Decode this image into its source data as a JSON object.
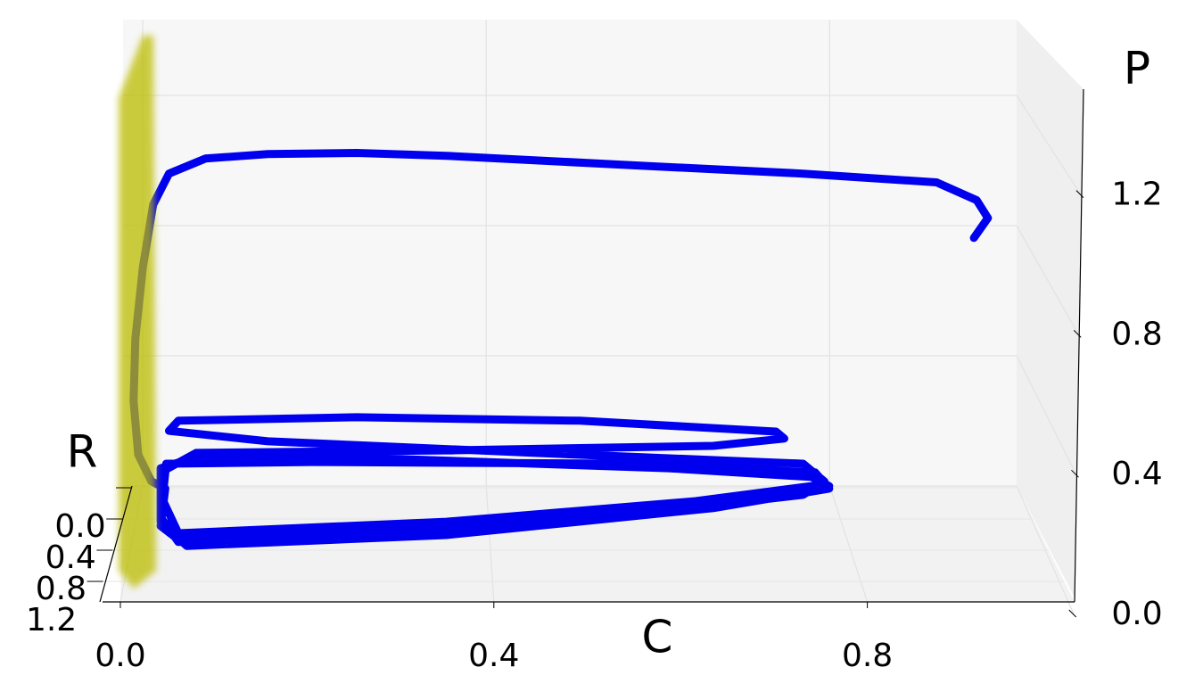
{
  "chart_data": {
    "type": "line3d",
    "color": "#0000ee",
    "plane_color": "#bcbc00",
    "xlabel": "C",
    "ylabel": "R",
    "zlabel": "P",
    "xlim": [
      0,
      1.02
    ],
    "ylim": [
      0,
      1.2
    ],
    "zlim": [
      0,
      1.5
    ],
    "xticks": [
      {
        "value": 0,
        "label": "0.0"
      },
      0.4,
      0.8
    ],
    "yticks": [
      {
        "value": 0,
        "label": "0.0"
      },
      0.4,
      0.8,
      1.2
    ],
    "zticks": [
      {
        "value": 0,
        "label": "0.0"
      },
      0.4,
      0.8,
      1.2
    ],
    "grid": true,
    "C": [
      0.916,
      0.931,
      0.919,
      0.876,
      0.733,
      0.542,
      0.351,
      0.255,
      0.16,
      0.093,
      0.054,
      0.037,
      0.026,
      0.018,
      0.016,
      0.021,
      0.035,
      0.05,
      0.045,
      0.064,
      0.255,
      0.494,
      0.713,
      0.761,
      0.742,
      0.589,
      0.303,
      0.083,
      0.045,
      0.045,
      0.064,
      0.303,
      0.542,
      0.733,
      0.756,
      0.733,
      0.446,
      0.16,
      0.054,
      0.064,
      0.255,
      0.494,
      0.704,
      0.713,
      0.637,
      0.351,
      0.083,
      0.045,
      0.045,
      0.073,
      0.351,
      0.637,
      0.761,
      0.746,
      0.542,
      0.207,
      0.051,
      0.047,
      0.064,
      0.351,
      0.618,
      0.756
    ],
    "P": [
      1.1,
      1.157,
      1.208,
      1.259,
      1.284,
      1.309,
      1.335,
      1.343,
      1.34,
      1.327,
      1.284,
      1.195,
      1.016,
      0.812,
      0.633,
      0.48,
      0.404,
      0.383,
      0.276,
      0.237,
      0.263,
      0.314,
      0.372,
      0.39,
      0.416,
      0.441,
      0.467,
      0.474,
      0.441,
      0.301,
      0.23,
      0.255,
      0.306,
      0.365,
      0.403,
      0.454,
      0.485,
      0.518,
      0.548,
      0.577,
      0.587,
      0.577,
      0.546,
      0.526,
      0.505,
      0.492,
      0.485,
      0.429,
      0.288,
      0.219,
      0.25,
      0.327,
      0.383,
      0.429,
      0.454,
      0.459,
      0.454,
      0.352,
      0.255,
      0.288,
      0.347,
      0.395
    ],
    "R": [
      0.1,
      0.1,
      0.1,
      0.1,
      0.1,
      0.1,
      0.1,
      0.1,
      0.1,
      0.1,
      0.1,
      0.1,
      0.1,
      0.1,
      0.1,
      0.1,
      0.1,
      0.1,
      0.1,
      0.1,
      0.1,
      0.1,
      0.1,
      0.1,
      0.1,
      0.1,
      0.1,
      0.1,
      0.1,
      0.1,
      0.1,
      0.1,
      0.1,
      0.1,
      0.1,
      0.1,
      0.1,
      0.1,
      0.1,
      0.1,
      0.1,
      0.1,
      0.1,
      0.1,
      0.1,
      0.1,
      0.1,
      0.1,
      0.1,
      0.1,
      0.1,
      0.1,
      0.1,
      0.1,
      0.1,
      0.1,
      0.1,
      0.1,
      0.1,
      0.1,
      0.1,
      0.1
    ]
  }
}
